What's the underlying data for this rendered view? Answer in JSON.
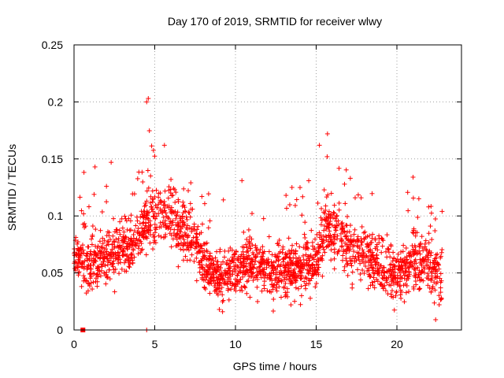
{
  "chart_data": {
    "type": "scatter",
    "title": "Day 170 of 2019, SRMTID for receiver wlwy",
    "xlabel": "GPS time / hours",
    "ylabel": "SRMTID / TECUs",
    "xlim": [
      0,
      24
    ],
    "ylim": [
      0,
      0.25
    ],
    "x_ticks": [
      0,
      5,
      10,
      15,
      20
    ],
    "x_tick_labels": [
      "0",
      "5",
      "10",
      "15",
      "20"
    ],
    "y_ticks": [
      0,
      0.05,
      0.1,
      0.15,
      0.2,
      0.25
    ],
    "y_tick_labels": [
      "0",
      "0.05",
      "0.1",
      "0.15",
      "0.2",
      "0.25"
    ],
    "grid": true,
    "series": [
      {
        "name": "SRMTID",
        "color": "#ff0000",
        "marker": "plus",
        "trend_hours": [
          0,
          1,
          2,
          3,
          4,
          4.5,
          5,
          6,
          7,
          8,
          9,
          10,
          11,
          12,
          13,
          14,
          15,
          15.5,
          16,
          17,
          18,
          19,
          20,
          21,
          22,
          22.8
        ],
        "trend_values": [
          0.065,
          0.058,
          0.065,
          0.07,
          0.08,
          0.1,
          0.1,
          0.1,
          0.085,
          0.06,
          0.045,
          0.055,
          0.06,
          0.05,
          0.05,
          0.055,
          0.06,
          0.085,
          0.09,
          0.075,
          0.065,
          0.055,
          0.05,
          0.06,
          0.055,
          0.045
        ],
        "peaks": [
          {
            "x": 4.5,
            "y": 0.2
          },
          {
            "x": 4.6,
            "y": 0.203
          },
          {
            "x": 15.7,
            "y": 0.172
          },
          {
            "x": 15.2,
            "y": 0.162
          },
          {
            "x": 5.6,
            "y": 0.162
          },
          {
            "x": 2.3,
            "y": 0.147
          },
          {
            "x": 1.3,
            "y": 0.143
          },
          {
            "x": 10.4,
            "y": 0.131
          },
          {
            "x": 13.5,
            "y": 0.125
          },
          {
            "x": 21.0,
            "y": 0.134
          },
          {
            "x": 22.8,
            "y": 0.104
          },
          {
            "x": 4.5,
            "y": 0.0
          },
          {
            "x": 9.2,
            "y": 0.016
          },
          {
            "x": 22.4,
            "y": 0.009
          }
        ],
        "zero_markers": [
          {
            "x": 0.55,
            "y": 0.0
          }
        ],
        "n_points": 2200
      }
    ]
  }
}
